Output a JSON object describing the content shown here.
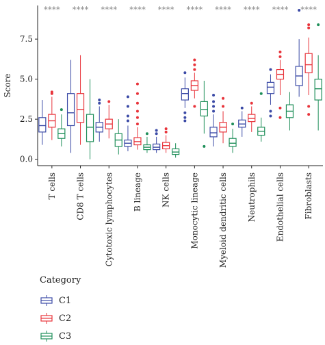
{
  "chart_data": {
    "type": "boxplot",
    "ylabel": "Score",
    "ylim": [
      -0.4,
      9.6
    ],
    "yticks": [
      0.0,
      2.5,
      5.0,
      7.5
    ],
    "ytick_labels": [
      "0.0",
      "2.5",
      "5.0",
      "7.5"
    ],
    "categories": [
      "T cells",
      "CD8 T cells",
      "Cytotoxic lymphocytes",
      "B lineage",
      "NK cells",
      "Monocytic lineage",
      "Myeloid dendritic cells",
      "Neutrophils",
      "Endothelial cells",
      "Fibroblasts"
    ],
    "significance": [
      "****",
      "****",
      "****",
      "****",
      "****",
      "****",
      "****",
      "****",
      "****",
      "****"
    ],
    "legend_title": "Category",
    "series": [
      {
        "name": "C1",
        "color": "#3b4aa6",
        "boxes": [
          {
            "min": 0.9,
            "q1": 1.7,
            "median": 2.1,
            "q3": 2.6,
            "max": 3.7,
            "outliers": []
          },
          {
            "min": 0.4,
            "q1": 2.1,
            "median": 2.9,
            "q3": 4.1,
            "max": 6.2,
            "outliers": []
          },
          {
            "min": 1.1,
            "q1": 1.7,
            "median": 2.0,
            "q3": 2.3,
            "max": 3.3,
            "outliers": [
              3.5,
              3.7
            ]
          },
          {
            "min": 0.5,
            "q1": 0.8,
            "median": 1.0,
            "q3": 1.2,
            "max": 2.1,
            "outliers": [
              2.4,
              2.7,
              3.3,
              3.9
            ]
          },
          {
            "min": 0.4,
            "q1": 0.6,
            "median": 0.75,
            "q3": 0.95,
            "max": 1.4,
            "outliers": [
              1.6,
              1.8
            ]
          },
          {
            "min": 3.2,
            "q1": 3.7,
            "median": 4.1,
            "q3": 4.4,
            "max": 5.1,
            "outliers": [
              2.9,
              2.6,
              2.4,
              5.4
            ]
          },
          {
            "min": 0.8,
            "q1": 1.4,
            "median": 1.65,
            "q3": 2.0,
            "max": 2.8,
            "outliers": [
              3.0,
              3.3,
              3.6,
              4.0
            ]
          },
          {
            "min": 1.4,
            "q1": 2.0,
            "median": 2.2,
            "q3": 2.45,
            "max": 3.0,
            "outliers": [
              3.2
            ]
          },
          {
            "min": 3.4,
            "q1": 4.1,
            "median": 4.5,
            "q3": 4.8,
            "max": 5.3,
            "outliers": [
              2.7,
              3.0,
              5.6
            ]
          },
          {
            "min": 3.9,
            "q1": 4.6,
            "median": 5.2,
            "q3": 5.8,
            "max": 7.5,
            "outliers": [
              9.3
            ]
          }
        ]
      },
      {
        "name": "C2",
        "color": "#e8333a",
        "boxes": [
          {
            "min": 1.2,
            "q1": 2.0,
            "median": 2.4,
            "q3": 2.8,
            "max": 3.9,
            "outliers": [
              4.1,
              4.2
            ]
          },
          {
            "min": 0.9,
            "q1": 2.3,
            "median": 3.1,
            "q3": 4.1,
            "max": 6.5,
            "outliers": []
          },
          {
            "min": 1.3,
            "q1": 1.9,
            "median": 2.2,
            "q3": 2.5,
            "max": 3.4,
            "outliers": [
              3.6
            ]
          },
          {
            "min": 0.6,
            "q1": 0.9,
            "median": 1.1,
            "q3": 1.35,
            "max": 2.0,
            "outliers": [
              2.2,
              2.6,
              3.0,
              3.5,
              4.1,
              4.7
            ]
          },
          {
            "min": 0.4,
            "q1": 0.65,
            "median": 0.85,
            "q3": 1.05,
            "max": 1.5,
            "outliers": [
              1.7,
              1.9
            ]
          },
          {
            "min": 3.8,
            "q1": 4.3,
            "median": 4.6,
            "q3": 4.9,
            "max": 5.4,
            "outliers": [
              3.3,
              5.6,
              5.9,
              6.2
            ]
          },
          {
            "min": 1.0,
            "q1": 1.7,
            "median": 2.0,
            "q3": 2.3,
            "max": 3.0,
            "outliers": [
              3.3,
              3.8
            ]
          },
          {
            "min": 1.7,
            "q1": 2.35,
            "median": 2.55,
            "q3": 2.8,
            "max": 3.3,
            "outliers": [
              3.5
            ]
          },
          {
            "min": 4.0,
            "q1": 5.0,
            "median": 5.3,
            "q3": 5.6,
            "max": 6.2,
            "outliers": [
              2.6,
              3.2,
              6.4,
              6.7
            ]
          },
          {
            "min": 4.0,
            "q1": 5.4,
            "median": 5.9,
            "q3": 6.6,
            "max": 7.6,
            "outliers": [
              2.8,
              3.3,
              8.2,
              8.4
            ]
          }
        ]
      },
      {
        "name": "C3",
        "color": "#1f8f5a",
        "boxes": [
          {
            "min": 0.8,
            "q1": 1.3,
            "median": 1.6,
            "q3": 1.9,
            "max": 2.8,
            "outliers": [
              3.1
            ]
          },
          {
            "min": 0.0,
            "q1": 1.1,
            "median": 2.0,
            "q3": 2.8,
            "max": 5.0,
            "outliers": []
          },
          {
            "min": 0.3,
            "q1": 0.8,
            "median": 1.2,
            "q3": 1.6,
            "max": 2.5,
            "outliers": []
          },
          {
            "min": 0.4,
            "q1": 0.6,
            "median": 0.75,
            "q3": 0.9,
            "max": 1.4,
            "outliers": [
              1.6
            ]
          },
          {
            "min": 0.1,
            "q1": 0.3,
            "median": 0.45,
            "q3": 0.65,
            "max": 1.0,
            "outliers": []
          },
          {
            "min": 1.6,
            "q1": 2.7,
            "median": 3.1,
            "q3": 3.6,
            "max": 4.9,
            "outliers": [
              0.8
            ]
          },
          {
            "min": 0.4,
            "q1": 0.8,
            "median": 1.0,
            "q3": 1.3,
            "max": 1.9,
            "outliers": [
              2.2
            ]
          },
          {
            "min": 1.1,
            "q1": 1.5,
            "median": 1.75,
            "q3": 2.0,
            "max": 2.6,
            "outliers": [
              4.1
            ]
          },
          {
            "min": 1.8,
            "q1": 2.6,
            "median": 3.0,
            "q3": 3.4,
            "max": 4.2,
            "outliers": []
          },
          {
            "min": 1.8,
            "q1": 3.7,
            "median": 4.4,
            "q3": 5.0,
            "max": 6.5,
            "outliers": [
              8.4
            ]
          }
        ]
      }
    ]
  }
}
